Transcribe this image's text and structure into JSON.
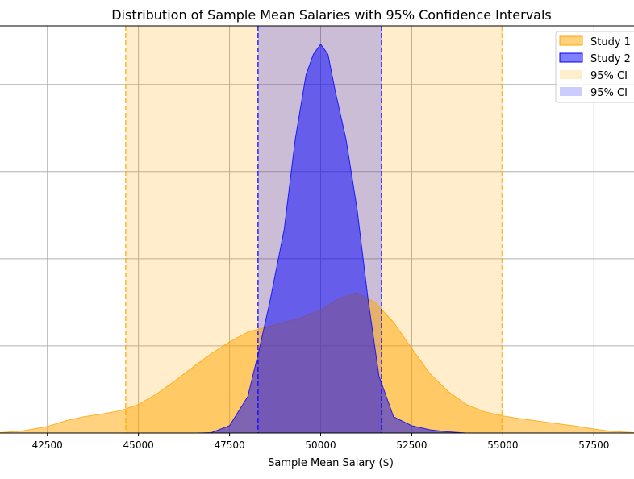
{
  "chart_data": {
    "type": "area",
    "title": "Distribution of Sample Mean Salaries with 95% Confidence Intervals",
    "xlabel": "Sample Mean Salary ($)",
    "ylabel": "",
    "xlim": [
      41200,
      58600
    ],
    "ylim": [
      0,
      1.0
    ],
    "grid": true,
    "legend_position": "top-right",
    "x_ticks": [
      42500,
      45000,
      47500,
      50000,
      52500,
      55000,
      57500
    ],
    "x_tick_labels": [
      "42500",
      "45000",
      "47500",
      "50000",
      "52500",
      "55000",
      "57500"
    ],
    "y_gridlines": [
      0,
      0.214,
      0.428,
      0.642,
      0.856
    ],
    "series": [
      {
        "name": "Study 1",
        "color": "#ffa500",
        "x": [
          41200,
          41800,
          42500,
          43000,
          43500,
          44000,
          44500,
          45000,
          45500,
          46000,
          46500,
          47000,
          47500,
          48000,
          48500,
          49000,
          49500,
          50000,
          50500,
          51000,
          51500,
          52000,
          52500,
          53000,
          53500,
          54000,
          54500,
          55000,
          55500,
          56000,
          56500,
          57000,
          57500,
          58000,
          58600
        ],
        "y": [
          0.001,
          0.005,
          0.016,
          0.03,
          0.04,
          0.047,
          0.055,
          0.07,
          0.096,
          0.128,
          0.162,
          0.195,
          0.224,
          0.248,
          0.26,
          0.272,
          0.284,
          0.302,
          0.33,
          0.345,
          0.32,
          0.272,
          0.208,
          0.146,
          0.102,
          0.07,
          0.052,
          0.042,
          0.035,
          0.029,
          0.023,
          0.017,
          0.01,
          0.004,
          0.001
        ]
      },
      {
        "name": "Study 2",
        "color": "#0000ff",
        "x": [
          46600,
          47000,
          47500,
          48000,
          48300,
          48600,
          49000,
          49300,
          49600,
          49800,
          50000,
          50200,
          50400,
          50700,
          51000,
          51300,
          51600,
          52000,
          52500,
          53000,
          53500,
          54000
        ],
        "y": [
          0.0,
          0.001,
          0.018,
          0.09,
          0.2,
          0.32,
          0.5,
          0.72,
          0.88,
          0.93,
          0.955,
          0.93,
          0.84,
          0.72,
          0.55,
          0.33,
          0.14,
          0.04,
          0.018,
          0.008,
          0.003,
          0.0
        ]
      }
    ],
    "confidence_intervals": [
      {
        "name": "95% CI",
        "series": "Study 1",
        "lower": 44650,
        "upper": 54980,
        "color": "#ffa500"
      },
      {
        "name": "95% CI",
        "series": "Study 2",
        "lower": 48280,
        "upper": 51670,
        "color": "#0000ff"
      }
    ],
    "legend": [
      "Study 1",
      "Study 2",
      "95% CI",
      "95% CI"
    ]
  }
}
